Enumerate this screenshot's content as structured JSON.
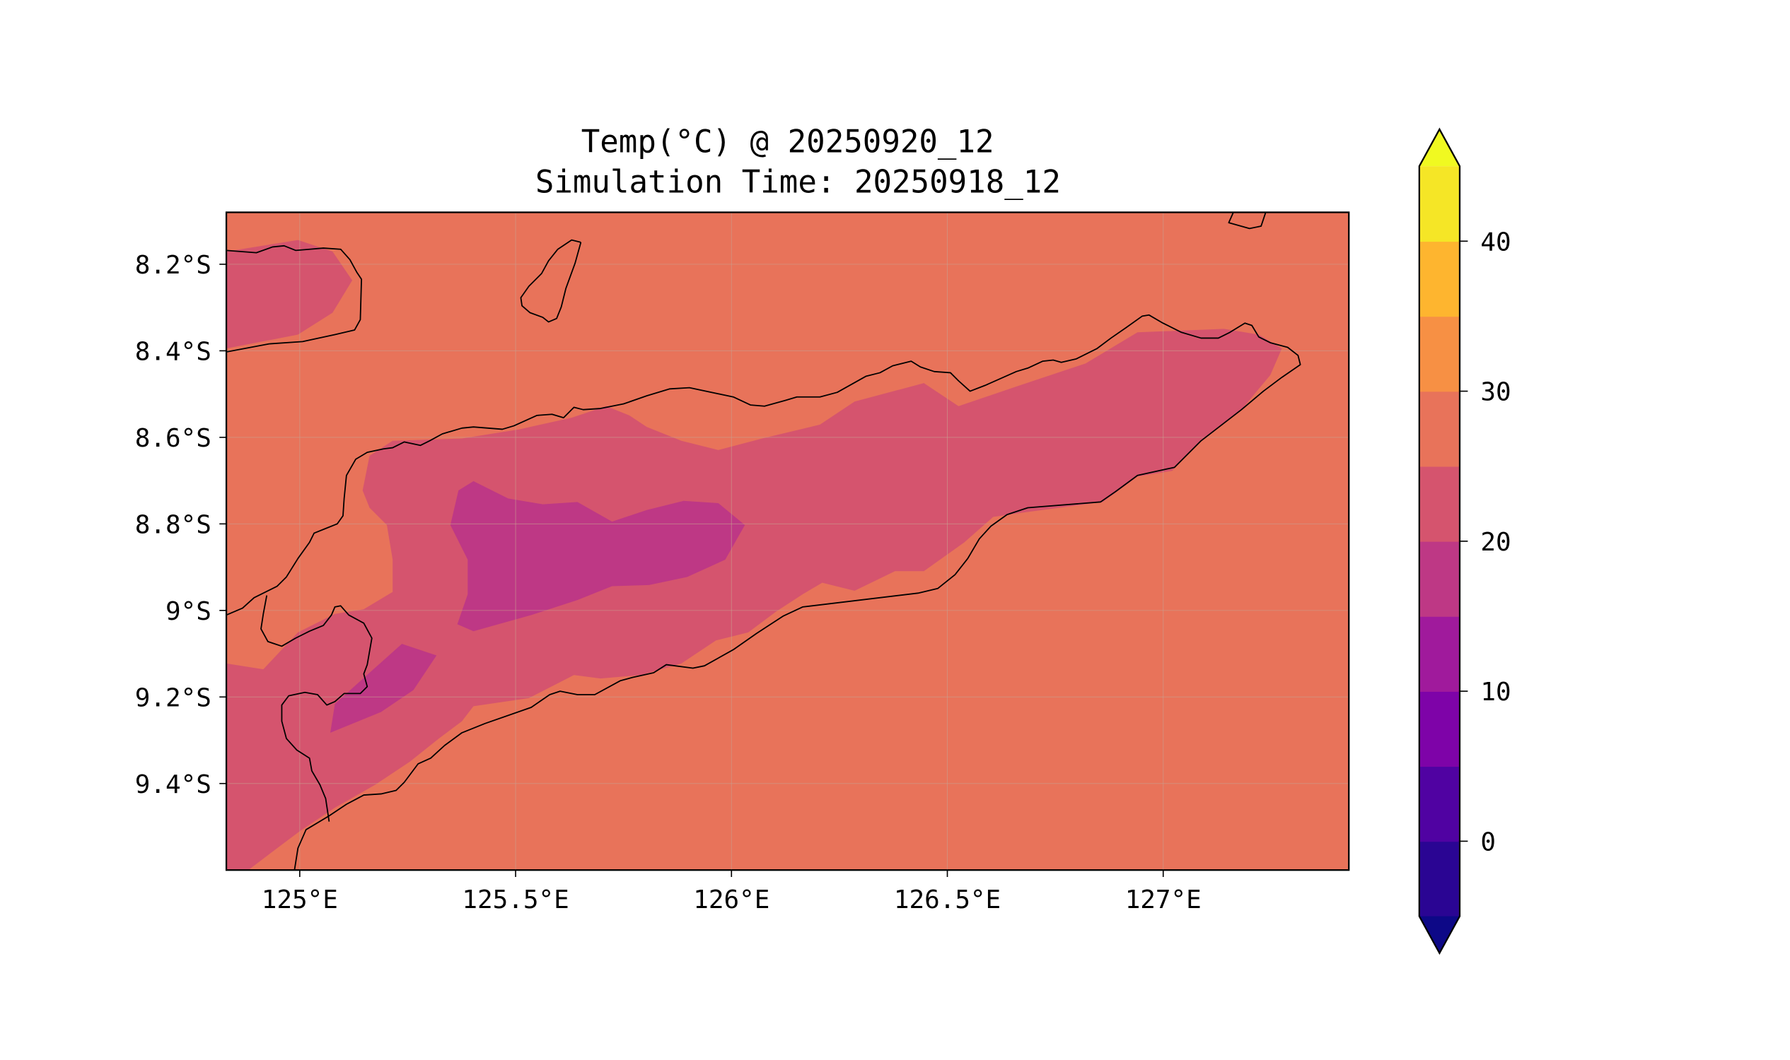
{
  "chart_data": {
    "type": "heatmap",
    "subtype": "filled-contour-map",
    "title": "Temp(°C) @ 20250920_12",
    "subtitle": "Simulation Time: 20250918_12",
    "xlabel": "",
    "ylabel": "",
    "xlim": [
      124.83,
      127.43
    ],
    "ylim": [
      -9.6,
      -8.08
    ],
    "grid": true,
    "x_ticks": [
      {
        "value": 125.0,
        "label": "125°E"
      },
      {
        "value": 125.5,
        "label": "125.5°E"
      },
      {
        "value": 126.0,
        "label": "126°E"
      },
      {
        "value": 126.5,
        "label": "126.5°E"
      },
      {
        "value": 127.0,
        "label": "127°E"
      }
    ],
    "y_ticks": [
      {
        "value": -8.2,
        "label": "8.2°S"
      },
      {
        "value": -8.4,
        "label": "8.4°S"
      },
      {
        "value": -8.6,
        "label": "8.6°S"
      },
      {
        "value": -8.8,
        "label": "8.8°S"
      },
      {
        "value": -9.0,
        "label": "9°S"
      },
      {
        "value": -9.2,
        "label": "9.2°S"
      },
      {
        "value": -9.4,
        "label": "9.4°S"
      }
    ],
    "colorbar": {
      "levels": [
        -5,
        0,
        5,
        10,
        15,
        20,
        25,
        30,
        35,
        40,
        45
      ],
      "colors": [
        "#2a0593",
        "#5002a2",
        "#7e03a8",
        "#a01a9c",
        "#be3885",
        "#d5546e",
        "#e8735a",
        "#f79044",
        "#feb52f",
        "#f5e626"
      ],
      "under_color": "#0d0887",
      "over_color": "#f0f921",
      "extend": "both",
      "ticks": [
        {
          "value": 0,
          "label": "0"
        },
        {
          "value": 10,
          "label": "10"
        },
        {
          "value": 20,
          "label": "20"
        },
        {
          "value": 30,
          "label": "30"
        },
        {
          "value": 40,
          "label": "40"
        }
      ]
    },
    "field_summary": {
      "sea_and_background_band": [
        25,
        30
      ],
      "timor_interior_band": [
        20,
        25
      ],
      "central_highlands_band": [
        15,
        20
      ]
    }
  }
}
